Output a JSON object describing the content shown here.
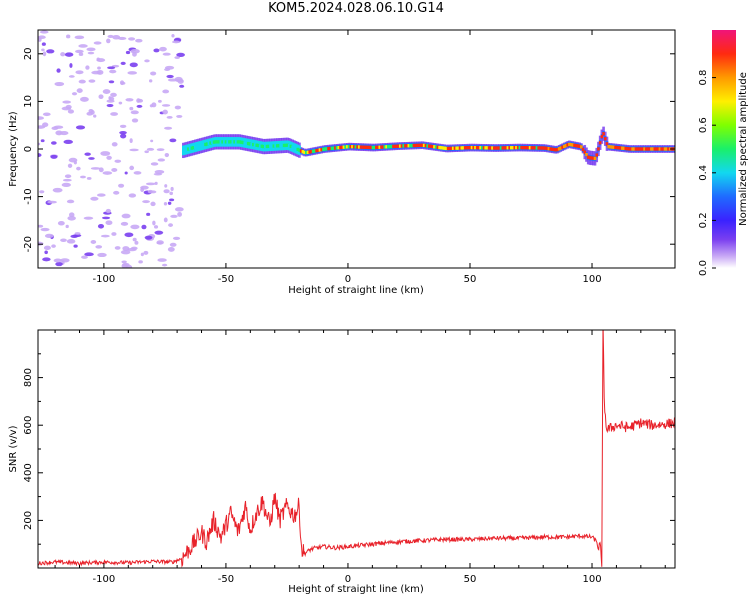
{
  "title": "KOM5.2024.028.06.10.G14",
  "colors": {
    "snr_line": "#e8222a",
    "axes": "#000000",
    "noise_purple": "#b98ef0",
    "colorscale": [
      "#ffffff",
      "#c8a8f5",
      "#7a3ff0",
      "#3a22ff",
      "#1f6bff",
      "#12d8f0",
      "#1af06a",
      "#7fff00",
      "#ffef00",
      "#ff9a00",
      "#ff2a10",
      "#f0147a"
    ]
  },
  "chart_data": [
    {
      "type": "heatmap",
      "xlabel": "Height of straight line (km)",
      "ylabel": "Frequency (Hz)",
      "xlim": [
        -127,
        134
      ],
      "ylim": [
        -25,
        25
      ],
      "xticks": [
        -100,
        -50,
        0,
        50,
        100
      ],
      "xtick_labels": [
        "-100",
        "-50",
        "0",
        "50",
        "100"
      ],
      "yticks": [
        -20,
        -10,
        0,
        10,
        20
      ],
      "ytick_labels": [
        "-20",
        "-10",
        "0",
        "10",
        "20"
      ],
      "noise_region_x": [
        -127,
        -68
      ],
      "signal_track": [
        {
          "x": -68,
          "f": -0.3
        },
        {
          "x": -55,
          "f": 1.5
        },
        {
          "x": -45,
          "f": 1.5
        },
        {
          "x": -35,
          "f": 0.5
        },
        {
          "x": -25,
          "f": 0.8
        },
        {
          "x": -18,
          "f": -0.8
        },
        {
          "x": -10,
          "f": 0.0
        },
        {
          "x": 0,
          "f": 0.5
        },
        {
          "x": 10,
          "f": 0.3
        },
        {
          "x": 20,
          "f": 0.6
        },
        {
          "x": 30,
          "f": 0.8
        },
        {
          "x": 40,
          "f": 0.1
        },
        {
          "x": 50,
          "f": 0.3
        },
        {
          "x": 60,
          "f": 0.2
        },
        {
          "x": 70,
          "f": 0.3
        },
        {
          "x": 80,
          "f": 0.2
        },
        {
          "x": 85,
          "f": -0.2
        },
        {
          "x": 90,
          "f": 1.0
        },
        {
          "x": 95,
          "f": 0.5
        },
        {
          "x": 98,
          "f": -1.8
        },
        {
          "x": 101,
          "f": -2.0
        },
        {
          "x": 104,
          "f": 3.5
        },
        {
          "x": 106,
          "f": 0.5
        },
        {
          "x": 115,
          "f": 0.0
        },
        {
          "x": 134,
          "f": 0.0
        }
      ],
      "colorbar": {
        "label": "Normalized spectral amplitude",
        "range": [
          0,
          1
        ],
        "ticks": [
          0.0,
          0.2,
          0.4,
          0.6,
          0.8
        ],
        "tick_labels": [
          "0.0",
          "0.2",
          "0.4",
          "0.6",
          "0.8"
        ]
      }
    },
    {
      "type": "line",
      "xlabel": "Height of straight line (km)",
      "ylabel": "SNR (v/v)",
      "xlim": [
        -127,
        134
      ],
      "ylim": [
        0,
        1000
      ],
      "xticks": [
        -100,
        -50,
        0,
        50,
        100
      ],
      "xtick_labels": [
        "-100",
        "-50",
        "0",
        "50",
        "100"
      ],
      "yticks": [
        200,
        400,
        600,
        800
      ],
      "ytick_labels": [
        "200",
        "400",
        "600",
        "800"
      ],
      "series": [
        {
          "x": [
            -127,
            -120,
            -110,
            -100,
            -90,
            -80,
            -72,
            -68,
            -65,
            -62,
            -60,
            -58,
            -55,
            -52,
            -50,
            -48,
            -45,
            -42,
            -40,
            -38,
            -35,
            -32,
            -30,
            -28,
            -25,
            -22,
            -20,
            -19,
            -18,
            -15,
            -10,
            -5,
            0,
            10,
            20,
            30,
            40,
            50,
            60,
            70,
            80,
            90,
            95,
            100,
            102,
            103,
            104,
            104.5,
            105,
            106,
            110,
            115,
            120,
            125,
            130,
            134
          ],
          "y": [
            20,
            25,
            20,
            25,
            22,
            28,
            25,
            40,
            80,
            120,
            150,
            110,
            200,
            130,
            180,
            230,
            150,
            260,
            160,
            220,
            280,
            180,
            300,
            200,
            260,
            220,
            260,
            80,
            60,
            80,
            90,
            85,
            90,
            100,
            110,
            115,
            120,
            120,
            125,
            125,
            130,
            130,
            135,
            130,
            110,
            60,
            40,
            980,
            700,
            580,
            600,
            590,
            610,
            600,
            605,
            610
          ]
        }
      ]
    }
  ]
}
